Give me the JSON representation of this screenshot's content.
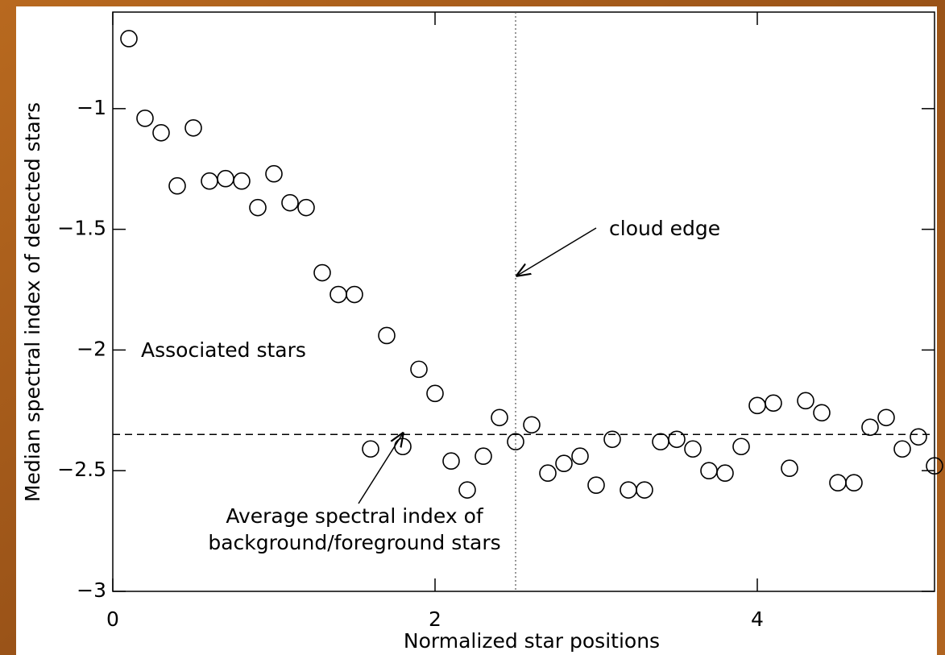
{
  "chart_data": {
    "type": "scatter",
    "xlabel": "Normalized star positions",
    "ylabel": "Median spectral index of detected stars",
    "annotations": [
      "cloud edge",
      "Associated stars",
      "Average spectral index of",
      "background/foreground stars"
    ],
    "x": [
      0.1,
      0.2,
      0.3,
      0.4,
      0.5,
      0.6,
      0.7,
      0.8,
      0.9,
      1.0,
      1.1,
      1.2,
      1.3,
      1.4,
      1.5,
      1.6,
      1.7,
      1.8,
      1.9,
      2.0,
      2.1,
      2.2,
      2.3,
      2.4,
      2.5,
      2.6,
      2.7,
      2.8,
      2.9,
      3.0,
      3.1,
      3.2,
      3.3,
      3.4,
      3.5,
      3.6,
      3.7,
      3.8,
      3.9,
      4.0,
      4.1,
      4.2,
      4.3,
      4.4,
      4.5,
      4.6,
      4.7,
      4.8,
      4.9,
      5.0,
      5.1
    ],
    "values": [
      -0.71,
      -1.04,
      -1.1,
      -1.32,
      -1.08,
      -1.3,
      -1.29,
      -1.3,
      -1.41,
      -1.27,
      -1.39,
      -1.41,
      -1.68,
      -1.77,
      -1.77,
      -2.41,
      -1.94,
      -2.4,
      -2.08,
      -2.18,
      -2.46,
      -2.58,
      -2.44,
      -2.28,
      -2.38,
      -2.31,
      -2.51,
      -2.47,
      -2.44,
      -2.56,
      -2.37,
      -2.58,
      -2.58,
      -2.38,
      -2.37,
      -2.41,
      -2.5,
      -2.51,
      -2.4,
      -2.23,
      -2.22,
      -2.49,
      -2.21,
      -2.26,
      -2.55,
      -2.55,
      -2.32,
      -2.28,
      -2.41,
      -2.36,
      -2.48
    ],
    "color": "#000000",
    "hline": -2.35,
    "vline": 2.5,
    "xlim": [
      0,
      5.1
    ],
    "ylim": [
      -3,
      -0.6
    ],
    "xticks": [
      0,
      2,
      4
    ],
    "yticks": [
      {
        "value": -1,
        "label": "−1"
      },
      {
        "value": -1.5,
        "label": "−1.5"
      },
      {
        "value": -2,
        "label": "−2"
      },
      {
        "value": -2.5,
        "label": "−2.5"
      },
      {
        "value": -3,
        "label": "−3"
      }
    ]
  }
}
